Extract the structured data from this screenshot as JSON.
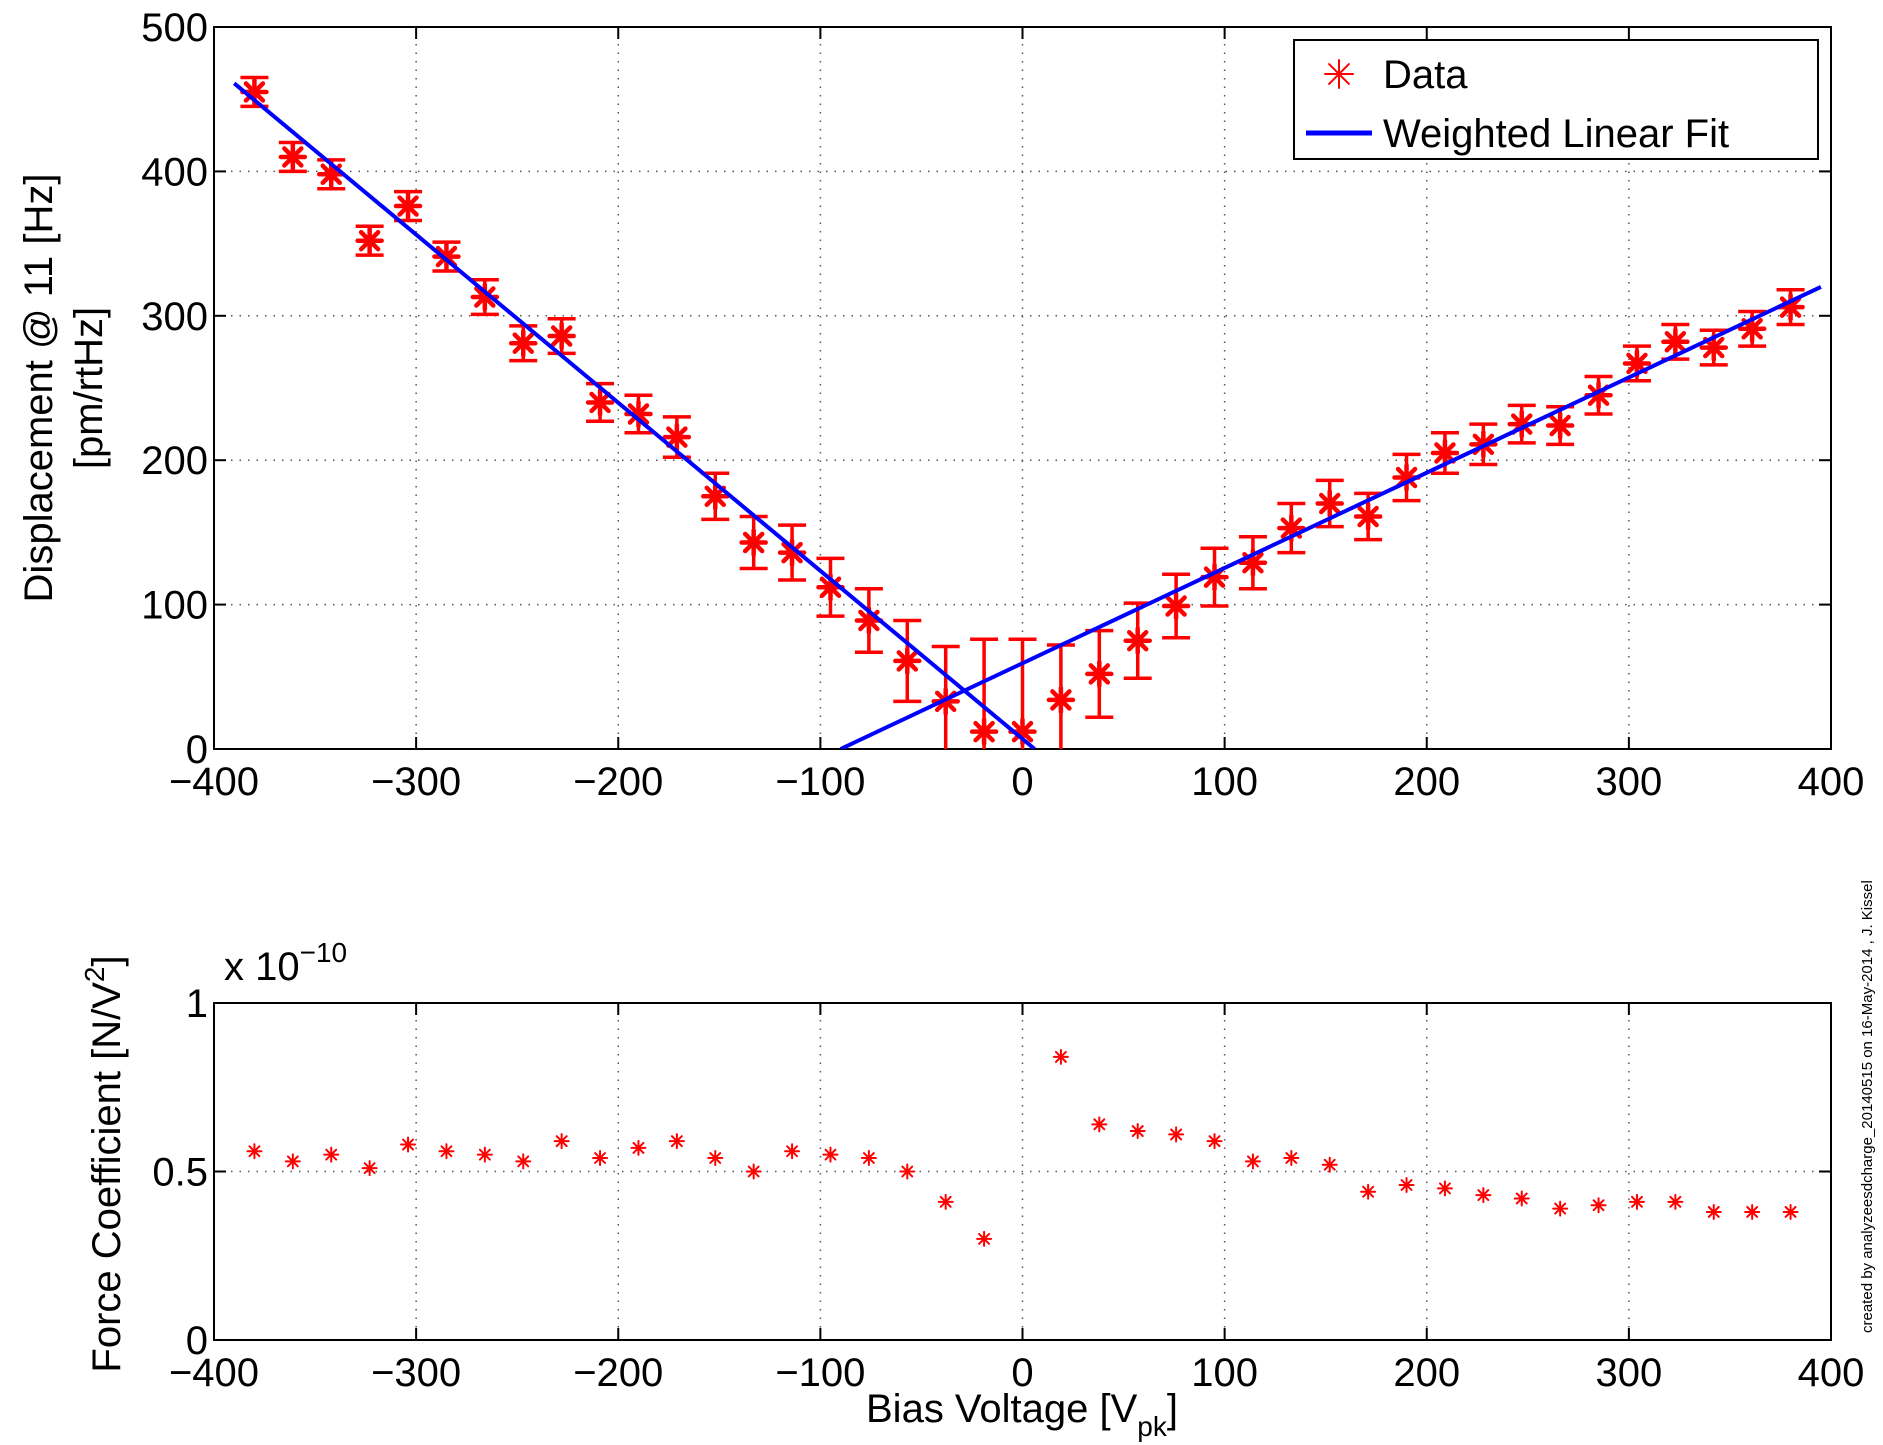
{
  "chart_data": [
    {
      "type": "scatter",
      "xlabel": "",
      "ylabel_line1": "Displacement @ 11 [Hz]",
      "ylabel_line2": "[pm/rtHz]",
      "xlim": [
        -400,
        400
      ],
      "ylim": [
        0,
        500
      ],
      "xticks": [
        -400,
        -300,
        -200,
        -100,
        0,
        100,
        200,
        300,
        400
      ],
      "yticks": [
        0,
        100,
        200,
        300,
        400,
        500
      ],
      "xtick_labels": [
        "−400",
        "−300",
        "−200",
        "−100",
        "0",
        "100",
        "200",
        "300",
        "400"
      ],
      "ytick_labels": [
        "0",
        "100",
        "200",
        "300",
        "400",
        "500"
      ],
      "grid": true,
      "legend": {
        "placement": "top-right",
        "entries": [
          "Data",
          "Weighted Linear Fit"
        ]
      },
      "colors": {
        "data": "#ff0000",
        "fit": "#0000ff"
      },
      "series": [
        {
          "name": "Data",
          "style": "markers-with-errorbars",
          "x": [
            -380,
            -361,
            -342,
            -323,
            -304,
            -285,
            -266,
            -247,
            -228,
            -209,
            -190,
            -171,
            -152,
            -133,
            -114,
            -95,
            -76,
            -57,
            -38,
            -19,
            0,
            19,
            38,
            57,
            76,
            95,
            114,
            133,
            152,
            171,
            190,
            209,
            228,
            247,
            266,
            285,
            304,
            323,
            342,
            361,
            380
          ],
          "y": [
            455,
            410,
            398,
            352,
            376,
            341,
            313,
            281,
            286,
            240,
            232,
            216,
            175,
            143,
            136,
            112,
            89,
            61,
            33,
            12,
            12,
            34,
            52,
            75,
            99,
            119,
            129,
            153,
            170,
            161,
            188,
            205,
            211,
            225,
            224,
            245,
            267,
            282,
            278,
            291,
            306
          ],
          "err": [
            10,
            10,
            10,
            10,
            10,
            10,
            12,
            12,
            12,
            13,
            13,
            14,
            16,
            18,
            19,
            20,
            22,
            28,
            38,
            64,
            64,
            38,
            30,
            26,
            22,
            20,
            18,
            17,
            16,
            16,
            16,
            14,
            14,
            13,
            13,
            13,
            12,
            12,
            12,
            12,
            12
          ]
        },
        {
          "name": "Weighted Linear Fit",
          "style": "line",
          "segments": [
            {
              "x": [
                -390,
                6
              ],
              "y": [
                461,
                0
              ]
            },
            {
              "x": [
                -90,
                395
              ],
              "y": [
                0,
                320
              ]
            }
          ]
        }
      ]
    },
    {
      "type": "scatter",
      "xlabel": "Bias Voltage [V",
      "xlabel_sub": "pk",
      "xlabel_close": "]",
      "ylabel": "Force Coefficient [N/V",
      "ylabel_sup": "2",
      "ylabel_close": "]",
      "scale_prefix": "x 10",
      "scale_exponent": "−10",
      "xlim": [
        -400,
        400
      ],
      "ylim": [
        0,
        1
      ],
      "xticks": [
        -400,
        -300,
        -200,
        -100,
        0,
        100,
        200,
        300,
        400
      ],
      "yticks": [
        0,
        0.5,
        1
      ],
      "xtick_labels": [
        "−400",
        "−300",
        "−200",
        "−100",
        "0",
        "100",
        "200",
        "300",
        "400"
      ],
      "ytick_labels": [
        "0",
        "0.5",
        "1"
      ],
      "grid": true,
      "colors": {
        "data": "#ff0000"
      },
      "series": [
        {
          "style": "markers",
          "x": [
            -380,
            -361,
            -342,
            -323,
            -304,
            -285,
            -266,
            -247,
            -228,
            -209,
            -190,
            -171,
            -152,
            -133,
            -114,
            -95,
            -76,
            -57,
            -38,
            -19,
            19,
            38,
            57,
            76,
            95,
            114,
            133,
            152,
            171,
            190,
            209,
            228,
            247,
            266,
            285,
            304,
            323,
            342,
            361,
            380
          ],
          "y": [
            0.56,
            0.53,
            0.55,
            0.51,
            0.58,
            0.56,
            0.55,
            0.53,
            0.59,
            0.54,
            0.57,
            0.59,
            0.54,
            0.5,
            0.56,
            0.55,
            0.54,
            0.5,
            0.41,
            0.3,
            0.84,
            0.64,
            0.62,
            0.61,
            0.59,
            0.53,
            0.54,
            0.52,
            0.44,
            0.46,
            0.45,
            0.43,
            0.42,
            0.39,
            0.4,
            0.41,
            0.41,
            0.38,
            0.38,
            0.38
          ]
        }
      ]
    }
  ],
  "side_note": "created by analyzeesdcharge_20140515 on 16-May-2014 , J. Kissel"
}
